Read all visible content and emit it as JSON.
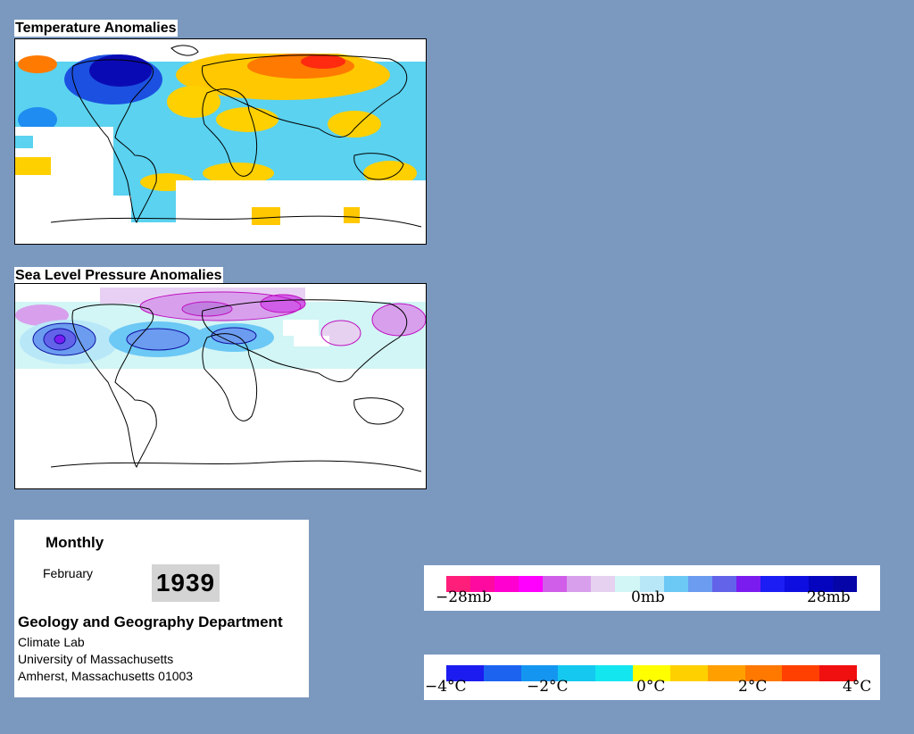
{
  "temperature_map": {
    "title": "Temperature Anomalies"
  },
  "pressure_map": {
    "title": "Sea Level Pressure Anomalies"
  },
  "info": {
    "period": "Monthly",
    "month": "February",
    "year": "1939",
    "department": "Geology and Geography Department",
    "lab": "Climate Lab",
    "university": "University of Massachusetts",
    "address": "Amherst, Massachusetts 01003"
  },
  "pressure_legend": {
    "labels": [
      "−28mb",
      "0mb",
      "28mb"
    ],
    "colors": [
      "#ff1e7a",
      "#ff0aa0",
      "#ff00d0",
      "#ff00ff",
      "#d15ee8",
      "#d8a0ec",
      "#e6d2f0",
      "#d2f5f5",
      "#b8e8f8",
      "#6cc8f5",
      "#6b9cf0",
      "#6363ea",
      "#7a1cf0",
      "#1c1cf5",
      "#0e0ee0",
      "#0505c0",
      "#0505a8"
    ]
  },
  "temperature_legend": {
    "labels": [
      "−4°C",
      "−2°C",
      "0°C",
      "2°C",
      "4°C"
    ],
    "colors": [
      "#1c1cf0",
      "#1c64f0",
      "#1496f0",
      "#14c8f0",
      "#14e6f0",
      "#ffff00",
      "#ffd000",
      "#ffa000",
      "#ff7800",
      "#ff4000",
      "#f01010"
    ]
  }
}
